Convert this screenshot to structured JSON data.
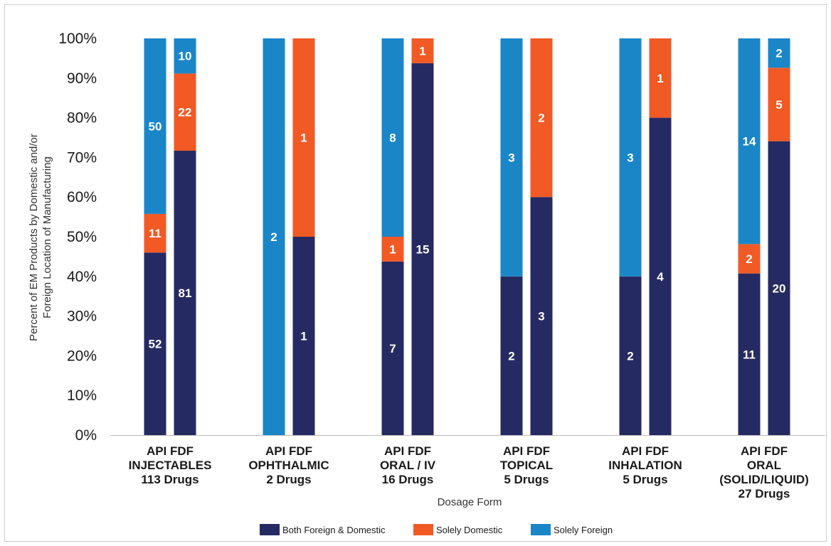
{
  "chart_data": {
    "type": "bar",
    "stacked": true,
    "xlabel": "Dosage Form",
    "ylabel": "Percent of EM Products by Domestic and/or Foreign Location of Manufacturing",
    "ylim": [
      0,
      100
    ],
    "y_ticks": [
      "0%",
      "10%",
      "20%",
      "30%",
      "40%",
      "50%",
      "60%",
      "70%",
      "80%",
      "90%",
      "100%"
    ],
    "grid": false,
    "legend_position": "bottom",
    "series": [
      {
        "name": "Both Foreign & Domestic",
        "color": "#262a63"
      },
      {
        "name": "Solely Domestic",
        "color": "#f15a25"
      },
      {
        "name": "Solely Foreign",
        "color": "#1a86c8"
      }
    ],
    "groups": [
      {
        "lines": [
          "API FDF",
          "INJECTABLES",
          "113 Drugs"
        ],
        "bars": [
          {
            "label": "API",
            "counts": [
              52,
              11,
              50
            ]
          },
          {
            "label": "FDF",
            "counts": [
              81,
              22,
              10
            ]
          }
        ]
      },
      {
        "lines": [
          "API FDF",
          "OPHTHALMIC",
          "2 Drugs"
        ],
        "bars": [
          {
            "label": "API",
            "counts": [
              0,
              0,
              2
            ]
          },
          {
            "label": "FDF",
            "counts": [
              1,
              1,
              0
            ]
          }
        ]
      },
      {
        "lines": [
          "API FDF",
          "ORAL / IV",
          "16 Drugs"
        ],
        "bars": [
          {
            "label": "API",
            "counts": [
              7,
              1,
              8
            ]
          },
          {
            "label": "FDF",
            "counts": [
              15,
              1,
              0
            ]
          }
        ]
      },
      {
        "lines": [
          "API FDF",
          "TOPICAL",
          "5 Drugs"
        ],
        "bars": [
          {
            "label": "API",
            "counts": [
              2,
              0,
              3
            ]
          },
          {
            "label": "FDF",
            "counts": [
              3,
              2,
              0
            ]
          }
        ]
      },
      {
        "lines": [
          "API FDF",
          "INHALATION",
          "5 Drugs"
        ],
        "bars": [
          {
            "label": "API",
            "counts": [
              2,
              0,
              3
            ]
          },
          {
            "label": "FDF",
            "counts": [
              4,
              1,
              0
            ]
          }
        ]
      },
      {
        "lines": [
          "API FDF",
          "ORAL",
          "(SOLID/LIQUID)",
          "27 Drugs"
        ],
        "bars": [
          {
            "label": "API",
            "counts": [
              11,
              2,
              14
            ]
          },
          {
            "label": "FDF",
            "counts": [
              20,
              5,
              2
            ]
          }
        ]
      }
    ]
  }
}
